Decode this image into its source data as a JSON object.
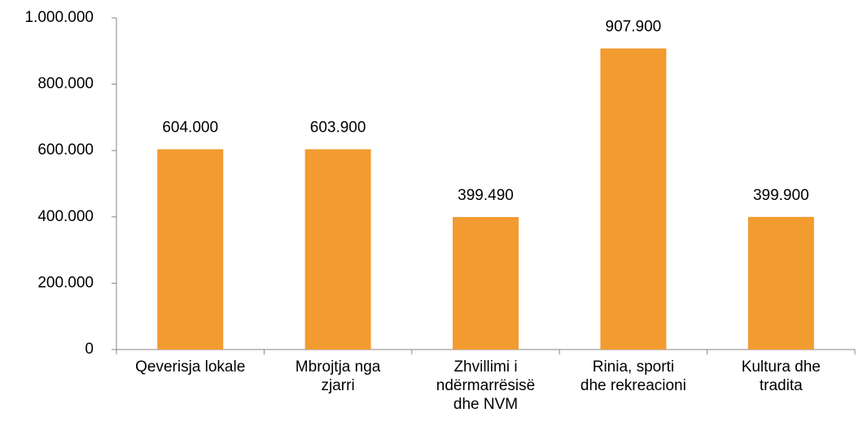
{
  "chart_data": {
    "type": "bar",
    "categories": [
      "Qeverisja lokale",
      "Mbrojtja nga\nzjarri",
      "Zhvillimi i\nndërmarrësisë\ndhe NVM",
      "Rinia, sporti\ndhe rekreacioni",
      "Kultura dhe\ntradita"
    ],
    "values": [
      604000,
      603900,
      399490,
      907900,
      399900
    ],
    "value_labels": [
      "604.000",
      "603.900",
      "399.490",
      "907.900",
      "399.900"
    ],
    "color": "#f29b30",
    "ylim": [
      0,
      1000000
    ],
    "yticks": [
      0,
      {
        "value": 200000,
        "label": "200.000"
      },
      {
        "value": 400000,
        "label": "400.000"
      },
      {
        "value": 600000,
        "label": "600.000"
      },
      {
        "value": 800000,
        "label": "800.000"
      },
      {
        "value": 1000000,
        "label": "1.000.000"
      }
    ]
  }
}
